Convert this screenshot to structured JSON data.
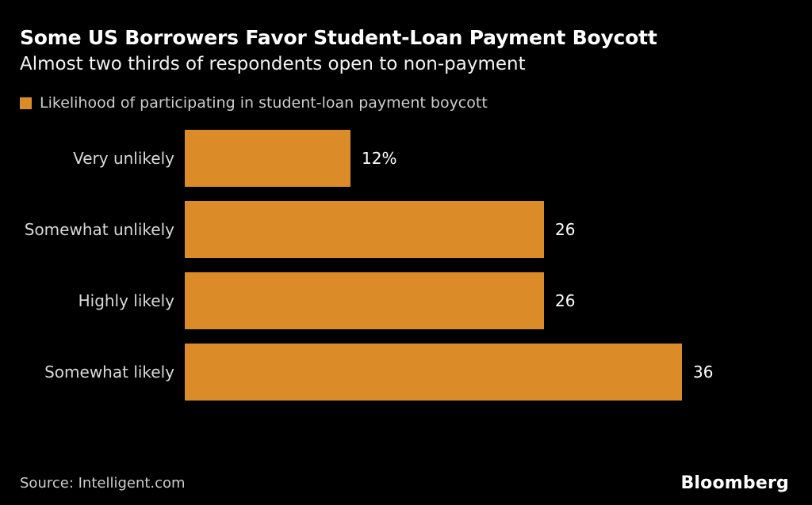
{
  "header": {
    "title": "Some US Borrowers Favor Student-Loan Payment Boycott",
    "subtitle": "Almost two thirds of respondents open to non-payment"
  },
  "legend": {
    "label": "Likelihood of participating in student-loan payment boycott",
    "swatch_color": "#DB8B28"
  },
  "chart_data": {
    "type": "bar",
    "orientation": "horizontal",
    "title": "Some US Borrowers Favor Student-Loan Payment Boycott",
    "subtitle": "Almost two thirds of respondents open to non-payment",
    "series_name": "Likelihood of participating in student-loan payment boycott",
    "categories": [
      "Very unlikely",
      "Somewhat unlikely",
      "Highly likely",
      "Somewhat likely"
    ],
    "values": [
      12,
      26,
      26,
      36
    ],
    "value_labels": [
      "12%",
      "26",
      "26",
      "36"
    ],
    "unit": "percent",
    "xlim": [
      0,
      40
    ],
    "grid": false,
    "legend_position": "top-left",
    "bar_color": "#DB8B28"
  },
  "footer": {
    "source": "Source: Intelligent.com",
    "brand": "Bloomberg"
  },
  "colors": {
    "background": "#000000",
    "bar": "#DB8B28",
    "title_text": "#FFFFFF",
    "subtitle_text": "#F2F2F2",
    "legend_text": "#CCCCCC",
    "category_text": "#D9D9D9",
    "value_text": "#FFFFFF",
    "source_text": "#CDCDCD"
  }
}
